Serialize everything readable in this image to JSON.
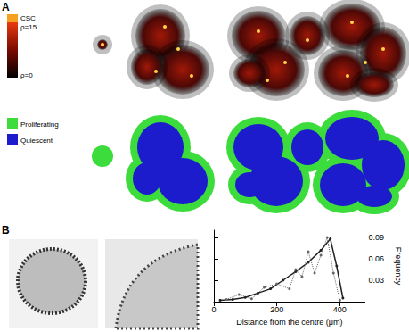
{
  "panel_a": {
    "label": "A",
    "colorbar": {
      "top_label": "CSC",
      "max_label": "ρ=15",
      "min_label": "ρ=0"
    },
    "legend": [
      {
        "name": "Proliferating",
        "color": "#3ddc3d"
      },
      {
        "name": "Quiescent",
        "color": "#1c1ccc"
      }
    ]
  },
  "panel_b": {
    "label": "B"
  },
  "chart_data": {
    "type": "line",
    "x_label": "Distance from the centre (μm)",
    "y_label": "Frequency",
    "xlim": [
      0,
      480
    ],
    "xticks": [
      0,
      200,
      400
    ],
    "ylim": [
      0,
      0.1
    ],
    "yticks": [
      0.03,
      0.06,
      0.09
    ],
    "grid": false,
    "series": [
      {
        "x": [
          20,
          60,
          100,
          140,
          180,
          220,
          260,
          300,
          340,
          370,
          390,
          410
        ],
        "values": [
          0.002,
          0.003,
          0.006,
          0.012,
          0.018,
          0.03,
          0.042,
          0.055,
          0.072,
          0.088,
          0.05,
          0.005
        ],
        "color": "#222222",
        "line_style": "solid",
        "marker": "circle"
      },
      {
        "x": [
          40,
          80,
          120,
          160,
          200,
          240,
          260,
          280,
          300,
          320,
          340,
          360,
          380,
          400
        ],
        "values": [
          0.003,
          0.01,
          0.004,
          0.02,
          0.025,
          0.018,
          0.045,
          0.035,
          0.07,
          0.04,
          0.065,
          0.09,
          0.04,
          0.002
        ],
        "color": "#666666",
        "line_style": "dotted",
        "marker": "circle"
      }
    ]
  }
}
